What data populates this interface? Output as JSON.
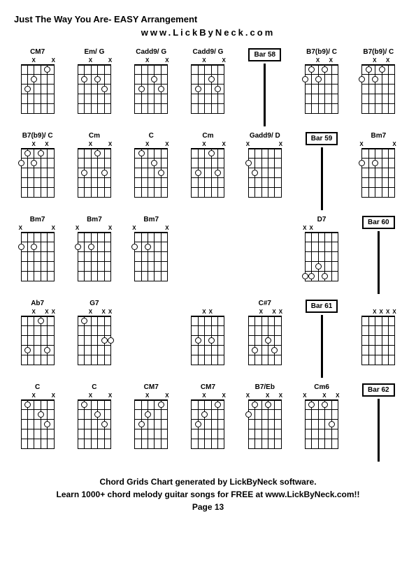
{
  "title": "Just The Way You Are- EASY Arrangement",
  "subtitle": "www.LickByNeck.com",
  "footer_line1": "Chord Grids Chart generated by LickByNeck software.",
  "footer_line2": "Learn 1000+ chord melody guitar songs for FREE at www.LickByNeck.com!!",
  "footer_line3": "Page 13",
  "diagram_style": {
    "fret_width": 48,
    "fret_height": 78,
    "num_frets": 5,
    "num_strings": 6,
    "dot_size": 7,
    "grid_cols": 7,
    "nut_thickness": 2,
    "colors": {
      "background": "#ffffff",
      "lines": "#000000",
      "text": "#000000"
    },
    "font_sizes": {
      "title": 13,
      "chord_label": 10,
      "marker": 8,
      "footer": 12
    }
  },
  "rows": [
    [
      {
        "type": "chord",
        "label": "CM7",
        "markers": [
          "",
          "",
          "X",
          "",
          "",
          "X"
        ],
        "dots": [
          [
            2,
            3
          ],
          [
            3,
            2
          ],
          [
            1,
            5
          ]
        ]
      },
      {
        "type": "chord",
        "label": "Em/ G",
        "markers": [
          "",
          "",
          "X",
          "",
          "",
          "X"
        ],
        "dots": [
          [
            2,
            2
          ],
          [
            2,
            4
          ],
          [
            3,
            5
          ]
        ]
      },
      {
        "type": "chord",
        "label": "Cadd9/ G",
        "markers": [
          "",
          "",
          "X",
          "",
          "",
          "X"
        ],
        "dots": [
          [
            2,
            4
          ],
          [
            3,
            2
          ],
          [
            3,
            5
          ]
        ]
      },
      {
        "type": "chord",
        "label": "Cadd9/ G",
        "markers": [
          "",
          "",
          "X",
          "",
          "",
          "X"
        ],
        "dots": [
          [
            2,
            4
          ],
          [
            3,
            2
          ],
          [
            3,
            5
          ]
        ]
      },
      {
        "type": "bar",
        "label": "Bar 58"
      },
      {
        "type": "chord",
        "label": "B7(b9)/ C",
        "markers": [
          "",
          "",
          "X",
          "",
          "X",
          ""
        ],
        "dots": [
          [
            1,
            2
          ],
          [
            1,
            4
          ],
          [
            2,
            1
          ],
          [
            2,
            3
          ]
        ]
      },
      {
        "type": "chord",
        "label": "B7(b9)/ C",
        "markers": [
          "",
          "",
          "X",
          "",
          "X",
          ""
        ],
        "dots": [
          [
            1,
            2
          ],
          [
            1,
            4
          ],
          [
            2,
            1
          ],
          [
            2,
            3
          ]
        ]
      }
    ],
    [
      {
        "type": "chord",
        "label": "B7(b9)/ C",
        "markers": [
          "",
          "",
          "X",
          "",
          "X",
          ""
        ],
        "dots": [
          [
            1,
            2
          ],
          [
            1,
            4
          ],
          [
            2,
            1
          ],
          [
            2,
            3
          ]
        ]
      },
      {
        "type": "chord",
        "label": "Cm",
        "markers": [
          "",
          "",
          "X",
          "",
          "",
          "X"
        ],
        "dots": [
          [
            1,
            4
          ],
          [
            3,
            2
          ],
          [
            3,
            5
          ]
        ]
      },
      {
        "type": "chord",
        "label": "C",
        "markers": [
          "",
          "",
          "X",
          "",
          "",
          "X"
        ],
        "dots": [
          [
            1,
            2
          ],
          [
            2,
            4
          ],
          [
            3,
            5
          ]
        ]
      },
      {
        "type": "chord",
        "label": "Cm",
        "markers": [
          "",
          "",
          "X",
          "",
          "",
          "X"
        ],
        "dots": [
          [
            1,
            4
          ],
          [
            3,
            2
          ],
          [
            3,
            5
          ]
        ]
      },
      {
        "type": "chord",
        "label": "Gadd9/ D",
        "markers": [
          "X",
          "",
          "",
          "",
          "",
          "X"
        ],
        "dots": [
          [
            2,
            1
          ],
          [
            3,
            2
          ]
        ]
      },
      {
        "type": "bar",
        "label": "Bar 59"
      },
      {
        "type": "chord",
        "label": "Bm7",
        "markers": [
          "X",
          "",
          "",
          "",
          "",
          "X"
        ],
        "dots": [
          [
            2,
            1
          ],
          [
            2,
            3
          ]
        ]
      }
    ],
    [
      {
        "type": "chord",
        "label": "Bm7",
        "markers": [
          "X",
          "",
          "",
          "",
          "",
          "X"
        ],
        "dots": [
          [
            2,
            1
          ],
          [
            2,
            3
          ]
        ]
      },
      {
        "type": "chord",
        "label": "Bm7",
        "markers": [
          "X",
          "",
          "",
          "",
          "",
          "X"
        ],
        "dots": [
          [
            2,
            1
          ],
          [
            2,
            3
          ]
        ]
      },
      {
        "type": "chord",
        "label": "Bm7",
        "markers": [
          "X",
          "",
          "",
          "",
          "",
          "X"
        ],
        "dots": [
          [
            2,
            1
          ],
          [
            2,
            3
          ]
        ]
      },
      {
        "type": "empty"
      },
      {
        "type": "empty"
      },
      {
        "type": "chord",
        "label": "D7",
        "markers": [
          "X",
          "X",
          "",
          "",
          "",
          ""
        ],
        "dots": [
          [
            4,
            3
          ],
          [
            5,
            1
          ],
          [
            5,
            2
          ],
          [
            5,
            4
          ]
        ]
      },
      {
        "type": "bar",
        "label": "Bar 60"
      }
    ],
    [
      {
        "type": "chord",
        "label": "Ab7",
        "markers": [
          "",
          "",
          "X",
          "",
          "X",
          "X"
        ],
        "dots": [
          [
            1,
            4
          ],
          [
            4,
            2
          ],
          [
            4,
            5
          ]
        ]
      },
      {
        "type": "chord",
        "label": "G7",
        "markers": [
          "",
          "",
          "X",
          "",
          "X",
          "X"
        ],
        "dots": [
          [
            1,
            2
          ],
          [
            3,
            5
          ],
          [
            3,
            6
          ]
        ]
      },
      {
        "type": "empty"
      },
      {
        "type": "chord",
        "label": "",
        "markers": [
          "",
          "",
          "X",
          "X",
          "",
          ""
        ],
        "dots": [
          [
            3,
            2
          ],
          [
            3,
            4
          ]
        ]
      },
      {
        "type": "chord",
        "label": "C#7",
        "markers": [
          "",
          "",
          "X",
          "",
          "X",
          "X"
        ],
        "dots": [
          [
            3,
            4
          ],
          [
            4,
            2
          ],
          [
            4,
            5
          ]
        ]
      },
      {
        "type": "bar",
        "label": "Bar 61"
      },
      {
        "type": "chord",
        "label": "",
        "markers": [
          "",
          "",
          "X",
          "X",
          "X",
          "X"
        ],
        "dots": []
      }
    ],
    [
      {
        "type": "chord",
        "label": "C",
        "markers": [
          "",
          "",
          "X",
          "",
          "",
          "X"
        ],
        "dots": [
          [
            1,
            2
          ],
          [
            2,
            4
          ],
          [
            3,
            5
          ]
        ]
      },
      {
        "type": "chord",
        "label": "C",
        "markers": [
          "",
          "",
          "X",
          "",
          "",
          "X"
        ],
        "dots": [
          [
            1,
            2
          ],
          [
            2,
            4
          ],
          [
            3,
            5
          ]
        ]
      },
      {
        "type": "chord",
        "label": "CM7",
        "markers": [
          "",
          "",
          "X",
          "",
          "",
          "X"
        ],
        "dots": [
          [
            2,
            3
          ],
          [
            3,
            2
          ],
          [
            1,
            5
          ]
        ]
      },
      {
        "type": "chord",
        "label": "CM7",
        "markers": [
          "",
          "",
          "X",
          "",
          "",
          "X"
        ],
        "dots": [
          [
            2,
            3
          ],
          [
            3,
            2
          ],
          [
            1,
            5
          ]
        ]
      },
      {
        "type": "chord",
        "label": "B7/Eb",
        "markers": [
          "X",
          "",
          "",
          "X",
          "",
          "X"
        ],
        "dots": [
          [
            1,
            2
          ],
          [
            1,
            4
          ],
          [
            2,
            1
          ]
        ]
      },
      {
        "type": "chord",
        "label": "Cm6",
        "markers": [
          "X",
          "",
          "",
          "X",
          "",
          "X"
        ],
        "dots": [
          [
            1,
            2
          ],
          [
            1,
            4
          ],
          [
            3,
            5
          ]
        ]
      },
      {
        "type": "bar",
        "label": "Bar 62"
      }
    ]
  ]
}
